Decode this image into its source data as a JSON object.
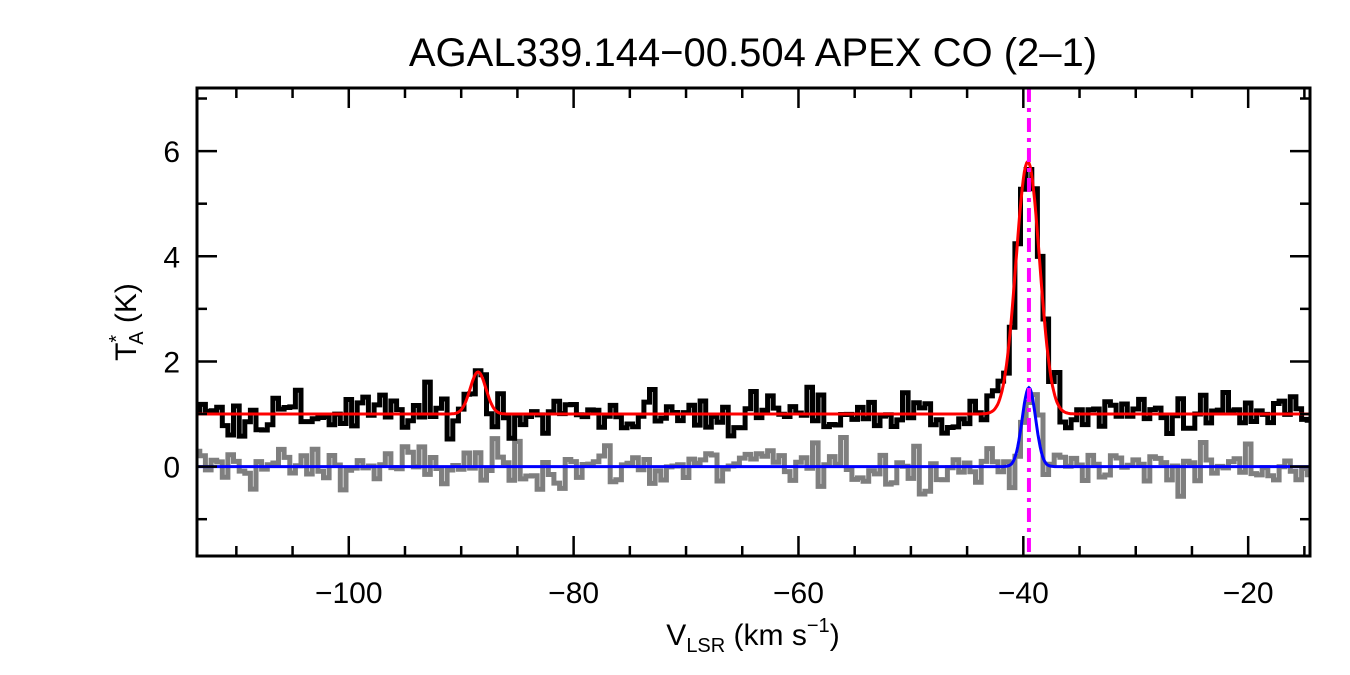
{
  "chart_data": {
    "type": "line",
    "title": "AGAL339.144−00.504  APEX CO (2–1)",
    "xlabel": {
      "main": "V",
      "sub": "LSR",
      "rest": " (km s",
      "sup": "−1",
      "close": ")"
    },
    "ylabel": {
      "main": "T",
      "sup": "*",
      "sub": "A",
      "rest": " (K)"
    },
    "xlim": [
      -113.5,
      -14.5
    ],
    "ylim": [
      -1.7,
      7.2
    ],
    "x_ticks": [
      -100,
      -80,
      -60,
      -40,
      -20
    ],
    "x_tick_labels": [
      "−100",
      "−80",
      "−60",
      "−40",
      "−20"
    ],
    "y_ticks": [
      0,
      2,
      4,
      6
    ],
    "y_tick_labels": [
      "0",
      "2",
      "4",
      "6"
    ],
    "y_minor_ticks": [
      -1,
      1,
      3,
      5,
      7
    ],
    "x_minor_step": 5,
    "vline": {
      "x": -39.5,
      "color": "#ff00ff",
      "style": "dash-dot"
    },
    "series": [
      {
        "type": "step",
        "color": "#000000",
        "offset": 1.0,
        "noise": 0.22,
        "components": [
          {
            "center": -88.5,
            "amp": 0.8,
            "sigma": 0.7
          },
          {
            "center": -39.6,
            "amp": 4.8,
            "sigma": 1.05
          }
        ]
      },
      {
        "type": "step",
        "color": "#7f7f7f",
        "offset": 0.0,
        "noise": 0.22,
        "components": [
          {
            "center": -39.5,
            "amp": 1.5,
            "sigma": 0.6
          }
        ]
      },
      {
        "type": "fit",
        "color": "#ff0000",
        "offset": 1.0,
        "components": [
          {
            "center": -88.5,
            "amp": 0.8,
            "sigma": 0.7
          },
          {
            "center": -39.6,
            "amp": 4.8,
            "sigma": 1.05
          }
        ]
      },
      {
        "type": "fit",
        "color": "#0000ff",
        "offset": 0.0,
        "components": [
          {
            "center": -39.5,
            "amp": 1.5,
            "sigma": 0.6
          }
        ]
      }
    ],
    "grid": false
  }
}
